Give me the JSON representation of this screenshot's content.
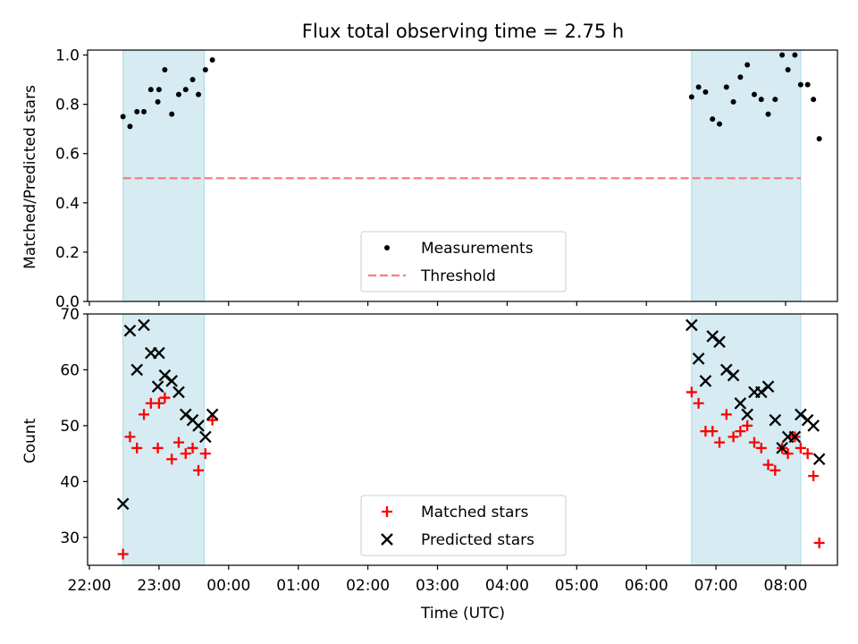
{
  "chart_data": [
    {
      "type": "scatter",
      "title": "Flux total observing time = 2.75 h",
      "xlabel": "",
      "ylabel": "Matched/Predicted stars",
      "ylim": [
        0.0,
        1.02
      ],
      "yticks": [
        "0.0",
        "0.2",
        "0.4",
        "0.6",
        "0.8",
        "1.0"
      ],
      "shaded_spans": [
        [
          "22:29",
          "23:39"
        ],
        [
          "06:39",
          "08:13"
        ]
      ],
      "threshold": {
        "name": "Threshold",
        "value": 0.5,
        "x_range": [
          "22:29",
          "08:13"
        ],
        "color": "#ff7b7b"
      },
      "series": [
        {
          "name": "Measurements",
          "marker": "dot",
          "color": "#000000",
          "points": [
            [
              "22:29",
              0.75
            ],
            [
              "22:35",
              0.71
            ],
            [
              "22:41",
              0.77
            ],
            [
              "22:47",
              0.77
            ],
            [
              "22:53",
              0.86
            ],
            [
              "22:59",
              0.81
            ],
            [
              "23:00",
              0.86
            ],
            [
              "23:05",
              0.94
            ],
            [
              "23:11",
              0.76
            ],
            [
              "23:17",
              0.84
            ],
            [
              "23:23",
              0.86
            ],
            [
              "23:29",
              0.9
            ],
            [
              "23:34",
              0.84
            ],
            [
              "23:40",
              0.94
            ],
            [
              "23:46",
              0.98
            ],
            [
              "06:39",
              0.83
            ],
            [
              "06:45",
              0.87
            ],
            [
              "06:51",
              0.85
            ],
            [
              "06:57",
              0.74
            ],
            [
              "07:03",
              0.72
            ],
            [
              "07:09",
              0.87
            ],
            [
              "07:15",
              0.81
            ],
            [
              "07:21",
              0.91
            ],
            [
              "07:27",
              0.96
            ],
            [
              "07:33",
              0.84
            ],
            [
              "07:39",
              0.82
            ],
            [
              "07:45",
              0.76
            ],
            [
              "07:51",
              0.82
            ],
            [
              "07:57",
              1.0
            ],
            [
              "08:02",
              0.94
            ],
            [
              "08:08",
              1.0
            ],
            [
              "08:13",
              0.88
            ],
            [
              "08:19",
              0.88
            ],
            [
              "08:24",
              0.82
            ],
            [
              "08:29",
              0.66
            ]
          ]
        }
      ],
      "legend": {
        "placement": "lower-center",
        "entries": [
          "Measurements",
          "Threshold"
        ]
      }
    },
    {
      "type": "scatter",
      "title": "",
      "xlabel": "Time (UTC)",
      "ylabel": "Count",
      "ylim": [
        25,
        70
      ],
      "yticks": [
        "30",
        "40",
        "50",
        "60",
        "70"
      ],
      "xticks": [
        "22:00",
        "23:00",
        "00:00",
        "01:00",
        "02:00",
        "03:00",
        "04:00",
        "05:00",
        "06:00",
        "07:00",
        "08:00"
      ],
      "shaded_spans": [
        [
          "22:29",
          "23:39"
        ],
        [
          "06:39",
          "08:13"
        ]
      ],
      "series": [
        {
          "name": "Matched stars",
          "marker": "plus",
          "color": "#ff0000",
          "points": [
            [
              "22:29",
              27
            ],
            [
              "22:35",
              48
            ],
            [
              "22:41",
              46
            ],
            [
              "22:47",
              52
            ],
            [
              "22:53",
              54
            ],
            [
              "22:59",
              46
            ],
            [
              "23:00",
              54
            ],
            [
              "23:05",
              55
            ],
            [
              "23:11",
              44
            ],
            [
              "23:17",
              47
            ],
            [
              "23:23",
              45
            ],
            [
              "23:29",
              46
            ],
            [
              "23:34",
              42
            ],
            [
              "23:40",
              45
            ],
            [
              "23:46",
              51
            ],
            [
              "06:39",
              56
            ],
            [
              "06:45",
              54
            ],
            [
              "06:51",
              49
            ],
            [
              "06:57",
              49
            ],
            [
              "07:03",
              47
            ],
            [
              "07:09",
              52
            ],
            [
              "07:15",
              48
            ],
            [
              "07:21",
              49
            ],
            [
              "07:27",
              50
            ],
            [
              "07:33",
              47
            ],
            [
              "07:39",
              46
            ],
            [
              "07:45",
              43
            ],
            [
              "07:51",
              42
            ],
            [
              "07:57",
              46
            ],
            [
              "08:02",
              45
            ],
            [
              "08:08",
              48
            ],
            [
              "08:13",
              46
            ],
            [
              "08:19",
              45
            ],
            [
              "08:24",
              41
            ],
            [
              "08:29",
              29
            ]
          ]
        },
        {
          "name": "Predicted stars",
          "marker": "x",
          "color": "#000000",
          "points": [
            [
              "22:29",
              36
            ],
            [
              "22:35",
              67
            ],
            [
              "22:41",
              60
            ],
            [
              "22:47",
              68
            ],
            [
              "22:53",
              63
            ],
            [
              "22:59",
              57
            ],
            [
              "23:00",
              63
            ],
            [
              "23:05",
              59
            ],
            [
              "23:11",
              58
            ],
            [
              "23:17",
              56
            ],
            [
              "23:23",
              52
            ],
            [
              "23:29",
              51
            ],
            [
              "23:34",
              50
            ],
            [
              "23:40",
              48
            ],
            [
              "23:46",
              52
            ],
            [
              "06:39",
              68
            ],
            [
              "06:45",
              62
            ],
            [
              "06:51",
              58
            ],
            [
              "06:57",
              66
            ],
            [
              "07:03",
              65
            ],
            [
              "07:09",
              60
            ],
            [
              "07:15",
              59
            ],
            [
              "07:21",
              54
            ],
            [
              "07:27",
              52
            ],
            [
              "07:33",
              56
            ],
            [
              "07:39",
              56
            ],
            [
              "07:45",
              57
            ],
            [
              "07:51",
              51
            ],
            [
              "07:57",
              46
            ],
            [
              "08:02",
              48
            ],
            [
              "08:08",
              48
            ],
            [
              "08:13",
              52
            ],
            [
              "08:19",
              51
            ],
            [
              "08:24",
              50
            ],
            [
              "08:29",
              44
            ]
          ]
        }
      ],
      "legend": {
        "placement": "lower-center",
        "entries": [
          "Matched stars",
          "Predicted stars"
        ]
      }
    }
  ]
}
